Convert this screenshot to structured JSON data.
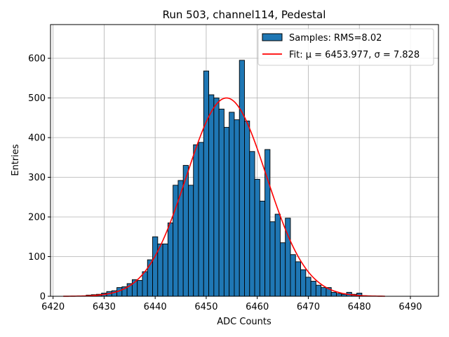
{
  "chart_data": {
    "type": "bar",
    "title": "Run 503, channel114, Pedestal",
    "xlabel": "ADC Counts",
    "ylabel": "Entries",
    "xlim": [
      6419.5,
      6495.5
    ],
    "ylim": [
      0,
      685
    ],
    "xticks": [
      6420,
      6430,
      6440,
      6450,
      6460,
      6470,
      6480,
      6490
    ],
    "yticks": [
      0,
      100,
      200,
      300,
      400,
      500,
      600
    ],
    "grid": true,
    "legend_position": "top-right",
    "bar_width": 1,
    "series": [
      {
        "name": "Samples: RMS=8.02",
        "kind": "histogram",
        "color": "#1f77b4",
        "edge_color": "#000000",
        "x": [
          6427,
          6428,
          6429,
          6430,
          6431,
          6432,
          6433,
          6434,
          6435,
          6436,
          6437,
          6438,
          6439,
          6440,
          6441,
          6442,
          6443,
          6444,
          6445,
          6446,
          6447,
          6448,
          6449,
          6450,
          6451,
          6452,
          6453,
          6454,
          6455,
          6456,
          6457,
          6458,
          6459,
          6460,
          6461,
          6462,
          6463,
          6464,
          6465,
          6466,
          6467,
          6468,
          6469,
          6470,
          6471,
          6472,
          6473,
          6474,
          6475,
          6476,
          6477,
          6478,
          6479,
          6480
        ],
        "values": [
          3,
          4,
          5,
          8,
          12,
          14,
          22,
          24,
          32,
          42,
          40,
          62,
          92,
          150,
          132,
          132,
          185,
          280,
          292,
          330,
          280,
          382,
          388,
          568,
          508,
          500,
          472,
          426,
          464,
          445,
          595,
          442,
          365,
          295,
          240,
          370,
          188,
          207,
          135,
          197,
          105,
          87,
          67,
          48,
          38,
          28,
          22,
          22,
          10,
          7,
          5,
          10,
          5,
          8
        ]
      },
      {
        "name": "Fit: μ = 6453.977, σ = 7.828",
        "kind": "gaussian-fit",
        "color": "#ff0000",
        "mu": 6453.977,
        "sigma": 7.828,
        "amplitude": 500,
        "x_range": [
          6422,
          6485
        ]
      }
    ]
  }
}
